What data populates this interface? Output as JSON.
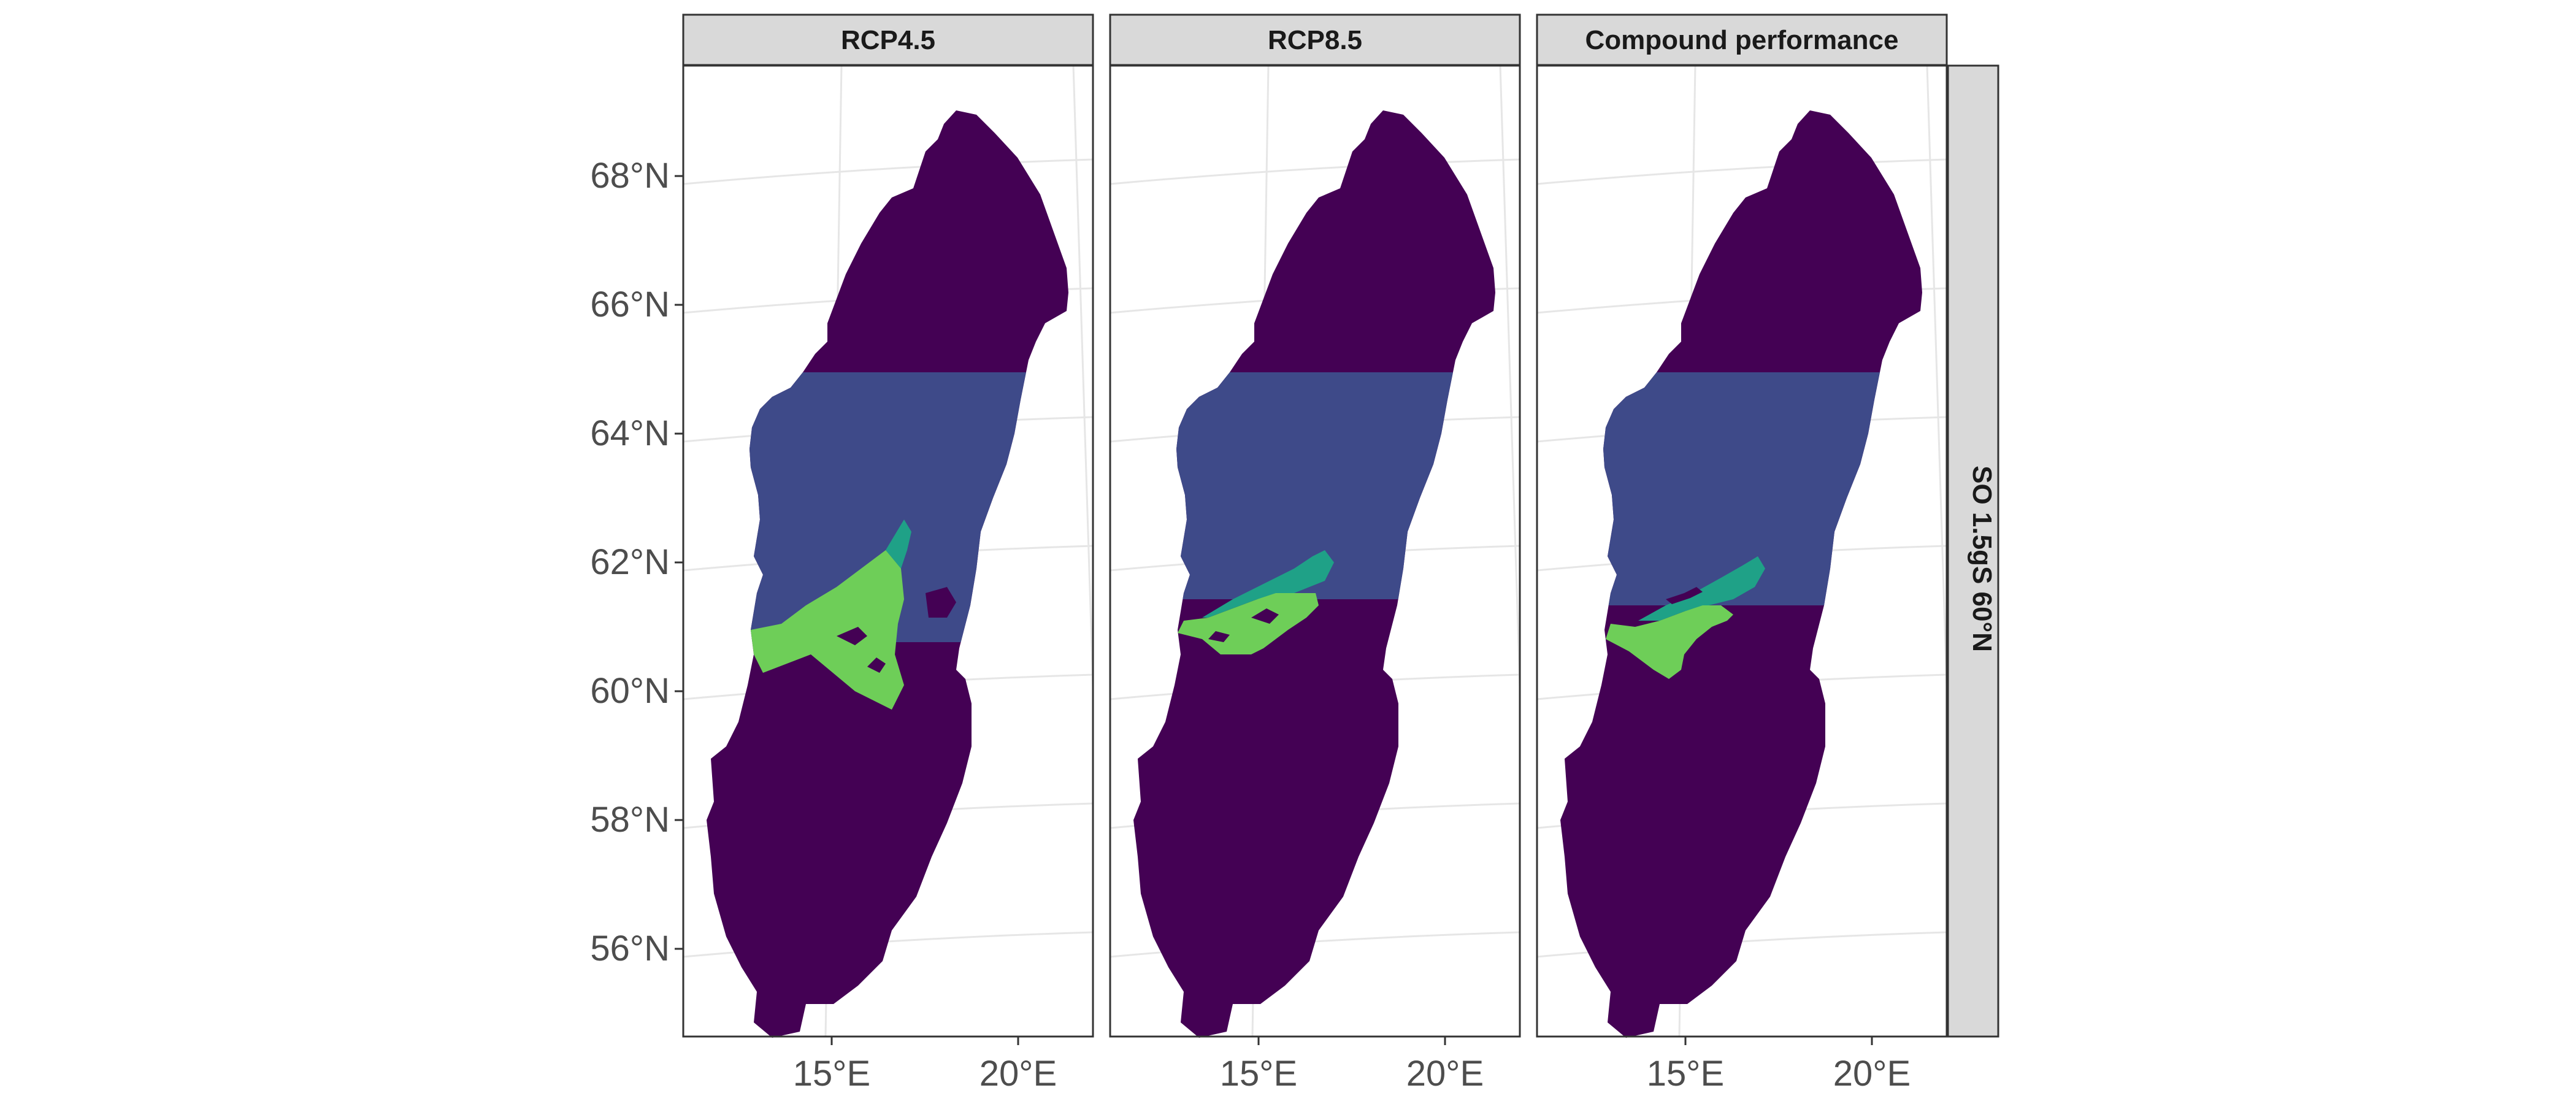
{
  "panels": [
    {
      "title": "RCP4.5"
    },
    {
      "title": "RCP8.5"
    },
    {
      "title": "Compound performance"
    }
  ],
  "row_strip": {
    "label": "SO 1.5gS 60°N"
  },
  "y_ticks": [
    "68°N",
    "66°N",
    "64°N",
    "62°N",
    "60°N",
    "58°N",
    "56°N"
  ],
  "x_ticks": [
    "15°E",
    "20°E"
  ],
  "colors": {
    "north_zone": "#440154",
    "middle_zone": "#3E4A89",
    "transition_zone": "#26828E",
    "teal_zone": "#1FA187",
    "suitable_zone": "#6ECE58",
    "south_zone": "#440154",
    "grid": "#E6E6E6",
    "strip_fill": "#D9D9D9",
    "panel_border": "#333333"
  },
  "map_data": {
    "region": "Sweden",
    "projection": "conic",
    "zones": [
      "north",
      "middle",
      "suitable",
      "south"
    ],
    "suitable_extent": {
      "RCP4.5": "large, 60–62.5°N",
      "RCP8.5": "smaller, 60.5–62°N",
      "Compound performance": "small, 60.5–62°N"
    }
  }
}
